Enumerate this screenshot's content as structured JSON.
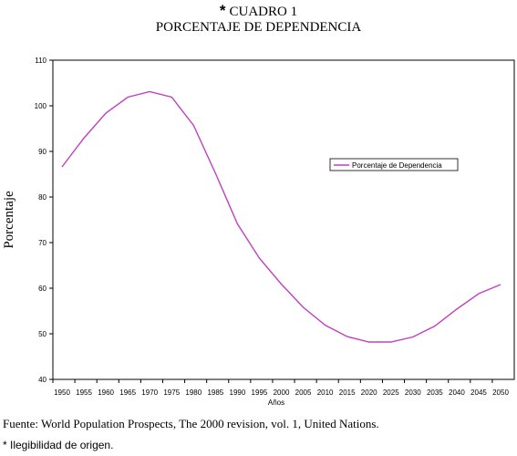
{
  "header": {
    "title_marker": "*",
    "title": "CUADRO 1",
    "subtitle": "PORCENTAJE DE DEPENDENCIA"
  },
  "footer": {
    "source": "Fuente: World Population Prospects, The  2000 revision,  vol. 1, United Nations.",
    "note": "* Ilegibilidad de origen."
  },
  "chart_data": {
    "type": "line",
    "title": "PORCENTAJE DE DEPENDENCIA",
    "xlabel": "Años",
    "ylabel": "Porcentaje",
    "ylim": [
      40,
      110
    ],
    "yticks": [
      40,
      50,
      60,
      70,
      80,
      90,
      100,
      110
    ],
    "grid": false,
    "legend_position": "right",
    "x": [
      "1950",
      "1955",
      "1960",
      "1965",
      "1970",
      "1975",
      "1980",
      "1985",
      "1990",
      "1995",
      "2000",
      "2005",
      "2010",
      "2015",
      "2020",
      "2025",
      "2030",
      "2035",
      "2040",
      "2045",
      "2050"
    ],
    "series": [
      {
        "name": "Porcentaje de Dependencia",
        "color": "#c040c0",
        "values": [
          86.6,
          92.9,
          98.4,
          101.9,
          103.1,
          101.9,
          95.7,
          85.2,
          74.1,
          66.6,
          60.9,
          55.8,
          51.9,
          49.4,
          48.2,
          48.2,
          49.3,
          51.7,
          55.4,
          58.8,
          60.8
        ]
      }
    ]
  }
}
